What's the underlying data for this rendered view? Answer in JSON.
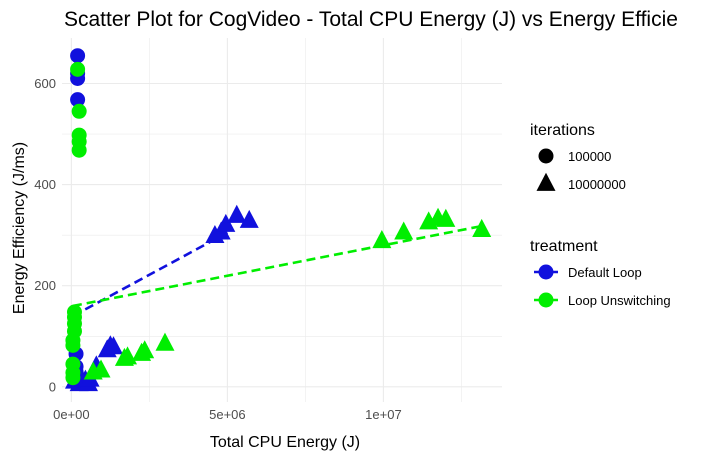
{
  "chart_data": {
    "type": "scatter",
    "title": "Scatter Plot for CogVideo - Total CPU Energy (J) vs Energy Efficie",
    "xlabel": "Total CPU Energy (J)",
    "ylabel": "Energy Efficiency (J/ms)",
    "xlim": [
      -300000,
      13800000
    ],
    "ylim": [
      -30,
      690
    ],
    "x_ticks": [
      0,
      5000000,
      10000000
    ],
    "x_tick_labels": [
      "0e+00",
      "5e+06",
      "1e+07"
    ],
    "y_ticks": [
      0,
      200,
      400,
      600
    ],
    "y_tick_labels": [
      "0",
      "200",
      "400",
      "600"
    ],
    "grid": true,
    "legend_position": "right",
    "legends": [
      {
        "title": "iterations",
        "kind": "shape",
        "items": [
          {
            "label": "100000",
            "shape": "circle"
          },
          {
            "label": "10000000",
            "shape": "triangle"
          }
        ]
      },
      {
        "title": "treatment",
        "kind": "color",
        "items": [
          {
            "label": "Default Loop",
            "color": "#1111dd"
          },
          {
            "label": "Loop Unswitching",
            "color": "#00ee00"
          }
        ]
      }
    ],
    "series": [
      {
        "treatment": "Default Loop",
        "color": "#1111dd",
        "points": [
          {
            "x": 200000,
            "y": 655,
            "shape": "circle"
          },
          {
            "x": 200000,
            "y": 620,
            "shape": "circle"
          },
          {
            "x": 200000,
            "y": 610,
            "shape": "circle"
          },
          {
            "x": 200000,
            "y": 568,
            "shape": "circle"
          },
          {
            "x": 150000,
            "y": 65,
            "shape": "circle"
          },
          {
            "x": 150000,
            "y": 40,
            "shape": "circle"
          },
          {
            "x": 150000,
            "y": 30,
            "shape": "circle"
          },
          {
            "x": 200000,
            "y": 20,
            "shape": "circle"
          },
          {
            "x": 100000,
            "y": 10,
            "shape": "triangle"
          },
          {
            "x": 250000,
            "y": 5,
            "shape": "triangle"
          },
          {
            "x": 450000,
            "y": 12,
            "shape": "triangle"
          },
          {
            "x": 550000,
            "y": 5,
            "shape": "triangle"
          },
          {
            "x": 600000,
            "y": 14,
            "shape": "triangle"
          },
          {
            "x": 800000,
            "y": 40,
            "shape": "triangle"
          },
          {
            "x": 1150000,
            "y": 72,
            "shape": "triangle"
          },
          {
            "x": 1250000,
            "y": 80,
            "shape": "triangle"
          },
          {
            "x": 1350000,
            "y": 78,
            "shape": "triangle"
          },
          {
            "x": 4600000,
            "y": 298,
            "shape": "triangle"
          },
          {
            "x": 4800000,
            "y": 305,
            "shape": "triangle"
          },
          {
            "x": 4950000,
            "y": 320,
            "shape": "triangle"
          },
          {
            "x": 5300000,
            "y": 338,
            "shape": "triangle"
          },
          {
            "x": 5700000,
            "y": 328,
            "shape": "triangle"
          }
        ],
        "trend": {
          "x": [
            50000,
            5000000
          ],
          "y": [
            140,
            305
          ]
        }
      },
      {
        "treatment": "Loop Unswitching",
        "color": "#00ee00",
        "points": [
          {
            "x": 200000,
            "y": 628,
            "shape": "circle"
          },
          {
            "x": 250000,
            "y": 545,
            "shape": "circle"
          },
          {
            "x": 250000,
            "y": 498,
            "shape": "circle"
          },
          {
            "x": 250000,
            "y": 485,
            "shape": "circle"
          },
          {
            "x": 250000,
            "y": 468,
            "shape": "circle"
          },
          {
            "x": 100000,
            "y": 148,
            "shape": "circle"
          },
          {
            "x": 100000,
            "y": 138,
            "shape": "circle"
          },
          {
            "x": 100000,
            "y": 125,
            "shape": "circle"
          },
          {
            "x": 100000,
            "y": 110,
            "shape": "circle"
          },
          {
            "x": 50000,
            "y": 92,
            "shape": "circle"
          },
          {
            "x": 50000,
            "y": 82,
            "shape": "circle"
          },
          {
            "x": 50000,
            "y": 45,
            "shape": "circle"
          },
          {
            "x": 50000,
            "y": 28,
            "shape": "circle"
          },
          {
            "x": 50000,
            "y": 18,
            "shape": "circle"
          },
          {
            "x": 700000,
            "y": 28,
            "shape": "triangle"
          },
          {
            "x": 950000,
            "y": 32,
            "shape": "triangle"
          },
          {
            "x": 1700000,
            "y": 55,
            "shape": "triangle"
          },
          {
            "x": 1800000,
            "y": 58,
            "shape": "triangle"
          },
          {
            "x": 2250000,
            "y": 65,
            "shape": "triangle"
          },
          {
            "x": 2350000,
            "y": 70,
            "shape": "triangle"
          },
          {
            "x": 3000000,
            "y": 85,
            "shape": "triangle"
          },
          {
            "x": 9950000,
            "y": 288,
            "shape": "triangle"
          },
          {
            "x": 10650000,
            "y": 305,
            "shape": "triangle"
          },
          {
            "x": 11450000,
            "y": 325,
            "shape": "triangle"
          },
          {
            "x": 11750000,
            "y": 332,
            "shape": "triangle"
          },
          {
            "x": 12000000,
            "y": 330,
            "shape": "triangle"
          },
          {
            "x": 13150000,
            "y": 310,
            "shape": "triangle"
          }
        ],
        "trend": {
          "x": [
            50000,
            13150000
          ],
          "y": [
            160,
            318
          ]
        }
      }
    ]
  }
}
